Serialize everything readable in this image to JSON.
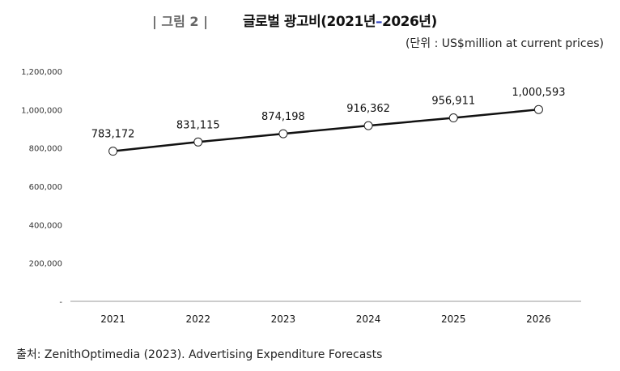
{
  "figure_label": "| 그림 2 |",
  "title_main": "글로벌 광고비(2021년",
  "title_dash": "–",
  "title_end": "2026년)",
  "unit_note": "(단위 : US$million at current prices)",
  "source": "출처: ZenithOptimedia (2023). Advertising Expenditure Forecasts",
  "colors": {
    "line": "#111111",
    "marker_fill": "#ffffff",
    "axis": "#999999",
    "title_dash": "#2b3fbf",
    "figure_label": "#666666"
  },
  "chart_data": {
    "type": "line",
    "title": "글로벌 광고비(2021년–2026년)",
    "categories": [
      "2021",
      "2022",
      "2023",
      "2024",
      "2025",
      "2026"
    ],
    "values": [
      783172,
      831115,
      874198,
      916362,
      956911,
      1000593
    ],
    "data_labels": [
      "783,172",
      "831,115",
      "874,198",
      "916,362",
      "956,911",
      "1,000,593"
    ],
    "ylim": [
      0,
      1200000
    ],
    "yticks": [
      0,
      200000,
      400000,
      600000,
      800000,
      1000000,
      1200000
    ],
    "ytick_labels": [
      "-",
      "200,000",
      "400,000",
      "600,000",
      "800,000",
      "1,000,000",
      "1,200,000"
    ],
    "grid": false,
    "legend": "none",
    "marker": "hollow-circle"
  }
}
